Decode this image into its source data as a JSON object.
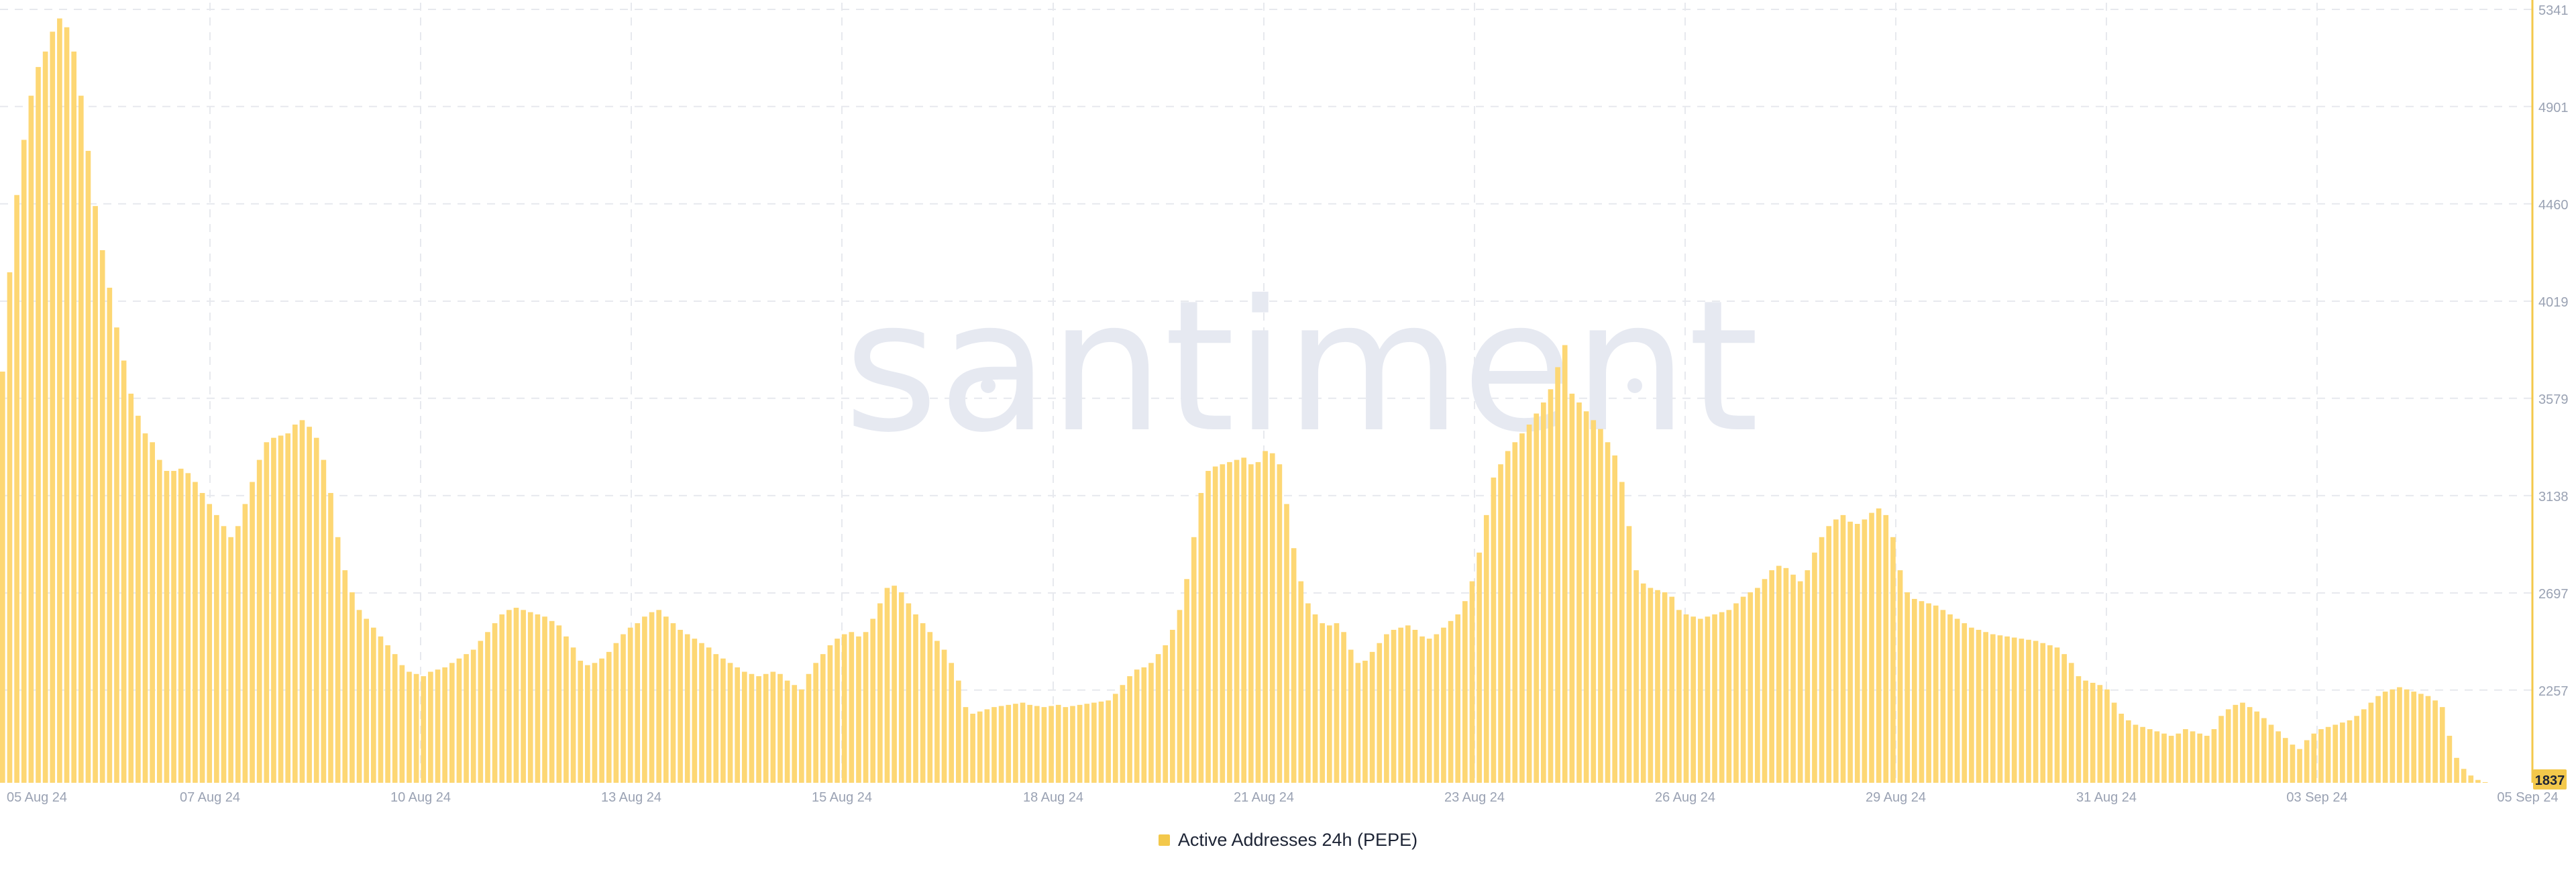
{
  "watermark": "santiment",
  "colors": {
    "bar": "#fdd774",
    "accent": "#f3c84b",
    "grid": "#e7e9ee",
    "tick": "#9aa2b3",
    "watermark": "#e6e9f1",
    "badge_text": "#1d2435"
  },
  "legend": {
    "label": "Active Addresses 24h (PEPE)"
  },
  "chart_data": {
    "type": "bar",
    "title": "",
    "xlabel": "",
    "ylabel": "",
    "grid": true,
    "legend_position": "bottom-center",
    "ylim": [
      1837,
      5341
    ],
    "y_ticks": [
      5341,
      4901,
      4460,
      4019,
      3579,
      3138,
      2697,
      2257,
      1837
    ],
    "x_ticks": [
      "05 Aug 24",
      "07 Aug 24",
      "10 Aug 24",
      "13 Aug 24",
      "15 Aug 24",
      "18 Aug 24",
      "21 Aug 24",
      "23 Aug 24",
      "26 Aug 24",
      "29 Aug 24",
      "31 Aug 24",
      "03 Sep 24",
      "05 Sep 24"
    ],
    "current_value_label": "1837",
    "series": [
      {
        "name": "Active Addresses 24h (PEPE)",
        "values": [
          3700,
          4150,
          4500,
          4750,
          4950,
          5080,
          5150,
          5240,
          5300,
          5260,
          5150,
          4950,
          4700,
          4450,
          4250,
          4080,
          3900,
          3750,
          3600,
          3500,
          3420,
          3380,
          3300,
          3250,
          3250,
          3260,
          3240,
          3200,
          3150,
          3100,
          3050,
          3000,
          2950,
          3000,
          3100,
          3200,
          3300,
          3380,
          3400,
          3410,
          3420,
          3460,
          3480,
          3450,
          3400,
          3300,
          3150,
          2950,
          2800,
          2700,
          2620,
          2580,
          2540,
          2500,
          2460,
          2420,
          2370,
          2340,
          2330,
          2320,
          2340,
          2350,
          2360,
          2380,
          2400,
          2420,
          2440,
          2480,
          2520,
          2560,
          2600,
          2620,
          2630,
          2620,
          2610,
          2600,
          2590,
          2570,
          2550,
          2500,
          2450,
          2390,
          2370,
          2380,
          2400,
          2430,
          2470,
          2510,
          2540,
          2560,
          2590,
          2610,
          2620,
          2590,
          2560,
          2530,
          2510,
          2490,
          2470,
          2450,
          2420,
          2400,
          2380,
          2360,
          2340,
          2330,
          2320,
          2330,
          2340,
          2330,
          2300,
          2280,
          2260,
          2330,
          2380,
          2420,
          2460,
          2490,
          2510,
          2520,
          2500,
          2520,
          2580,
          2650,
          2720,
          2730,
          2700,
          2650,
          2600,
          2560,
          2520,
          2480,
          2440,
          2380,
          2300,
          2180,
          2150,
          2160,
          2170,
          2180,
          2185,
          2190,
          2195,
          2200,
          2190,
          2185,
          2180,
          2185,
          2190,
          2180,
          2185,
          2190,
          2195,
          2200,
          2205,
          2210,
          2240,
          2280,
          2320,
          2350,
          2360,
          2380,
          2420,
          2460,
          2530,
          2620,
          2760,
          2950,
          3150,
          3250,
          3270,
          3280,
          3290,
          3300,
          3310,
          3280,
          3290,
          3340,
          3330,
          3280,
          3100,
          2900,
          2750,
          2650,
          2600,
          2560,
          2550,
          2560,
          2520,
          2440,
          2380,
          2390,
          2430,
          2470,
          2510,
          2530,
          2540,
          2550,
          2530,
          2500,
          2490,
          2510,
          2540,
          2570,
          2600,
          2660,
          2750,
          2880,
          3050,
          3220,
          3280,
          3340,
          3380,
          3420,
          3460,
          3510,
          3560,
          3620,
          3720,
          3820,
          3600,
          3560,
          3520,
          3480,
          3440,
          3380,
          3320,
          3200,
          3000,
          2800,
          2740,
          2720,
          2710,
          2700,
          2680,
          2620,
          2600,
          2590,
          2580,
          2590,
          2600,
          2610,
          2620,
          2650,
          2680,
          2700,
          2720,
          2760,
          2800,
          2820,
          2810,
          2780,
          2750,
          2800,
          2880,
          2950,
          3000,
          3030,
          3050,
          3020,
          3010,
          3030,
          3060,
          3080,
          3050,
          2950,
          2800,
          2700,
          2670,
          2660,
          2650,
          2640,
          2620,
          2600,
          2580,
          2560,
          2540,
          2530,
          2520,
          2510,
          2505,
          2500,
          2495,
          2490,
          2485,
          2480,
          2470,
          2460,
          2450,
          2420,
          2380,
          2320,
          2300,
          2290,
          2280,
          2260,
          2200,
          2150,
          2120,
          2100,
          2090,
          2080,
          2070,
          2060,
          2050,
          2060,
          2080,
          2070,
          2060,
          2050,
          2080,
          2140,
          2170,
          2190,
          2200,
          2180,
          2160,
          2130,
          2100,
          2070,
          2040,
          2010,
          1990,
          2030,
          2060,
          2080,
          2090,
          2100,
          2110,
          2120,
          2140,
          2170,
          2200,
          2230,
          2250,
          2260,
          2270,
          2260,
          2250,
          2240,
          2230,
          2210,
          2180,
          2050,
          1950,
          1900,
          1870,
          1850,
          1840,
          1837
        ]
      }
    ]
  }
}
